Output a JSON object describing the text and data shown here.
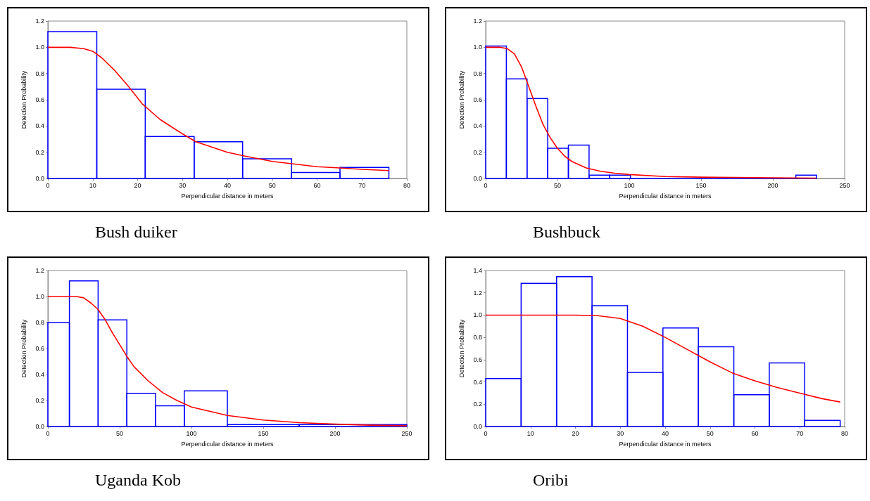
{
  "chart_data": [
    {
      "type": "histogram",
      "title": "Bush duiker",
      "xlabel": "Perpendicular distance in meters",
      "ylabel": "Detection Probability",
      "xlim": [
        0,
        80
      ],
      "xticks": [
        0,
        10,
        20,
        30,
        40,
        50,
        60,
        70,
        80
      ],
      "ylim": [
        0,
        1.2
      ],
      "yticks": [
        {
          "value": 0,
          "label": "0.0"
        },
        {
          "value": 0.2,
          "label": "0.2"
        },
        {
          "value": 0.4,
          "label": "0.4"
        },
        {
          "value": 0.6,
          "label": "0.6"
        },
        {
          "value": 0.8,
          "label": "0.8"
        },
        {
          "value": 1,
          "label": "1.0"
        },
        {
          "value": 1.2,
          "label": "1.2"
        }
      ],
      "marker": "none",
      "series": [
        {
          "type": "histogram",
          "color": "#0000ff",
          "bins": [
            0,
            10.9,
            21.7,
            32.6,
            43.4,
            54.3,
            65.1,
            76
          ],
          "values": [
            1.12,
            0.68,
            0.32,
            0.28,
            0.15,
            0.045,
            0.085
          ]
        },
        {
          "type": "line",
          "color": "#ff0000",
          "x": [
            0,
            5,
            8,
            10,
            12,
            15,
            18,
            21,
            25,
            30,
            33,
            40,
            44,
            50,
            55,
            60,
            65,
            70,
            76
          ],
          "values": [
            1.0,
            1.0,
            0.99,
            0.97,
            0.92,
            0.82,
            0.7,
            0.57,
            0.45,
            0.34,
            0.28,
            0.2,
            0.17,
            0.13,
            0.11,
            0.09,
            0.08,
            0.07,
            0.06
          ]
        }
      ]
    },
    {
      "type": "histogram",
      "title": "Bushbuck",
      "xlabel": "Perpendicular distance in meters",
      "ylabel": "Detection Probability",
      "xlim": [
        0,
        250
      ],
      "xticks": [
        0,
        50,
        100,
        150,
        200,
        250
      ],
      "ylim": [
        0,
        1.2
      ],
      "yticks": [
        {
          "value": 0,
          "label": "0.0"
        },
        {
          "value": 0.2,
          "label": "0.2"
        },
        {
          "value": 0.4,
          "label": "0.4"
        },
        {
          "value": 0.6,
          "label": "0.6"
        },
        {
          "value": 0.8,
          "label": "0.8"
        },
        {
          "value": 1,
          "label": "1.0"
        },
        {
          "value": 1.2,
          "label": "1.2"
        }
      ],
      "marker": "none",
      "series": [
        {
          "type": "histogram",
          "color": "#0000ff",
          "bins": [
            0,
            14.4,
            28.8,
            43.2,
            57.6,
            72,
            86.4,
            100.8,
            115.2,
            129.6,
            144,
            158.4,
            172.8,
            187.2,
            201.6,
            216,
            230.4
          ],
          "values": [
            1.01,
            0.76,
            0.61,
            0.23,
            0.255,
            0.025,
            0.025,
            0,
            0,
            0,
            0,
            0,
            0,
            0,
            0,
            0.025
          ]
        },
        {
          "type": "line",
          "color": "#ff0000",
          "x": [
            0,
            10,
            15,
            20,
            25,
            30,
            35,
            40,
            45,
            50,
            55,
            60,
            70,
            80,
            90,
            100,
            125,
            150,
            200,
            230
          ],
          "values": [
            1.0,
            1.0,
            0.99,
            0.95,
            0.85,
            0.7,
            0.55,
            0.41,
            0.31,
            0.23,
            0.17,
            0.13,
            0.08,
            0.055,
            0.04,
            0.03,
            0.015,
            0.01,
            0.005,
            0.003
          ]
        }
      ]
    },
    {
      "type": "histogram",
      "title": "Uganda Kob",
      "xlabel": "Perpendicular distance in meters",
      "ylabel": "Detection Probability",
      "xlim": [
        0,
        250
      ],
      "xticks": [
        0,
        50,
        100,
        150,
        200,
        250
      ],
      "ylim": [
        0,
        1.2
      ],
      "yticks": [
        {
          "value": 0,
          "label": "0.0"
        },
        {
          "value": 0.2,
          "label": "0.2"
        },
        {
          "value": 0.4,
          "label": "0.4"
        },
        {
          "value": 0.6,
          "label": "0.6"
        },
        {
          "value": 0.8,
          "label": "0.8"
        },
        {
          "value": 1,
          "label": "1.0"
        },
        {
          "value": 1.2,
          "label": "1.2"
        }
      ],
      "marker": "none",
      "series": [
        {
          "type": "histogram",
          "color": "#0000ff",
          "bins": [
            0,
            15,
            35,
            55,
            75,
            95,
            125,
            175,
            250
          ],
          "values": [
            0.8,
            1.12,
            0.82,
            0.255,
            0.16,
            0.275,
            0.015,
            0.015
          ]
        },
        {
          "type": "line",
          "color": "#ff0000",
          "x": [
            0,
            20,
            25,
            30,
            35,
            40,
            45,
            50,
            55,
            60,
            70,
            80,
            90,
            100,
            125,
            150,
            175,
            200,
            225,
            250
          ],
          "values": [
            1.0,
            1.0,
            0.99,
            0.95,
            0.9,
            0.82,
            0.72,
            0.63,
            0.54,
            0.46,
            0.35,
            0.26,
            0.2,
            0.15,
            0.085,
            0.05,
            0.03,
            0.018,
            0.01,
            0.006
          ]
        }
      ]
    },
    {
      "type": "histogram",
      "title": "Oribi",
      "xlabel": "Perpendicular distance in meters",
      "ylabel": "Detection Probability",
      "xlim": [
        0,
        80
      ],
      "xticks": [
        0,
        10,
        20,
        30,
        40,
        50,
        60,
        70,
        80
      ],
      "ylim": [
        0,
        1.4
      ],
      "yticks": [
        {
          "value": 0,
          "label": "0.0"
        },
        {
          "value": 0.2,
          "label": "0.2"
        },
        {
          "value": 0.4,
          "label": "0.4"
        },
        {
          "value": 0.6,
          "label": "0.6"
        },
        {
          "value": 0.8,
          "label": "0.8"
        },
        {
          "value": 1,
          "label": "1.0"
        },
        {
          "value": 1.2,
          "label": "1.2"
        },
        {
          "value": 1.4,
          "label": "1.4"
        }
      ],
      "marker": "none",
      "series": [
        {
          "type": "histogram",
          "color": "#0000ff",
          "bins": [
            0,
            7.9,
            15.8,
            23.7,
            31.6,
            39.5,
            47.4,
            55.3,
            63.2,
            71.1,
            79
          ],
          "values": [
            0.43,
            1.285,
            1.345,
            1.085,
            0.485,
            0.885,
            0.715,
            0.285,
            0.57,
            0.055
          ]
        },
        {
          "type": "line",
          "color": "#ff0000",
          "x": [
            0,
            20,
            25,
            30,
            35,
            40,
            45,
            50,
            55,
            60,
            65,
            70,
            75,
            79
          ],
          "values": [
            1.0,
            1.0,
            0.995,
            0.97,
            0.9,
            0.8,
            0.69,
            0.58,
            0.48,
            0.41,
            0.35,
            0.3,
            0.25,
            0.22
          ]
        }
      ]
    }
  ]
}
